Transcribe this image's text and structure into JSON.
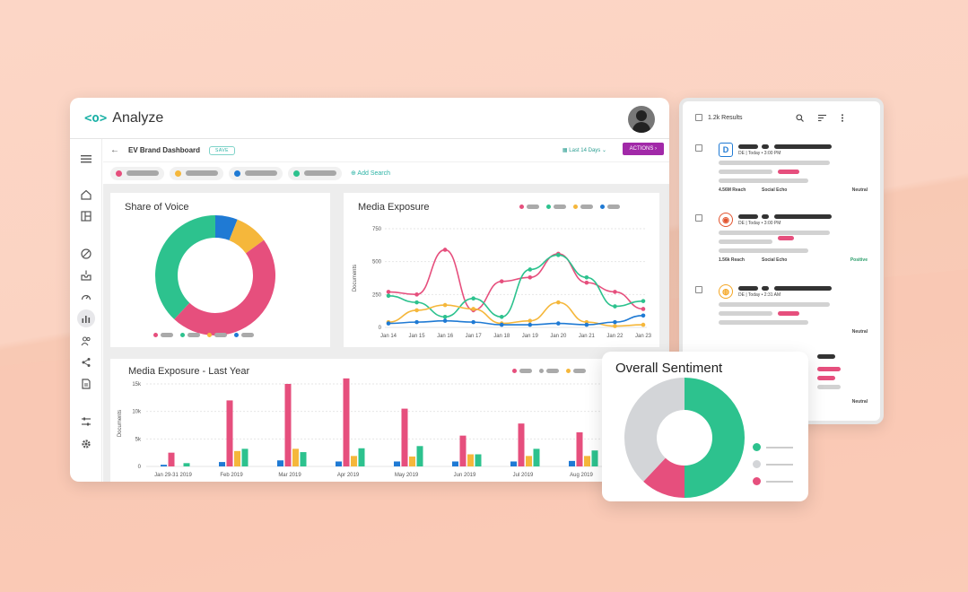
{
  "app": {
    "logo_mark": "<o>",
    "name": "Analyze"
  },
  "toolbar": {
    "back": "←",
    "dashboard_title": "EV Brand Dashboard",
    "save_label": "SAVE",
    "date_range": "Last 14 Days",
    "date_caret": "⌄",
    "actions_label": "ACTIONS ›"
  },
  "filters": {
    "chips": [
      {
        "color": "#e64f7d"
      },
      {
        "color": "#f5b73b"
      },
      {
        "color": "#1f7ad4"
      },
      {
        "color": "#2dc28e"
      }
    ],
    "add_search": "⊕ Add Search"
  },
  "sidebar_icons": [
    "menu-icon",
    "home-icon",
    "layout-icon",
    "compass-icon",
    "inbox-icon",
    "gauge-icon",
    "analytics-icon",
    "users-icon",
    "share-icon",
    "report-icon",
    "sliders-icon",
    "gear-icon"
  ],
  "colors": {
    "pink": "#e64f7d",
    "green": "#2dc28e",
    "yellow": "#f5b73b",
    "blue": "#1f7ad4",
    "grey": "#d3d5d8",
    "accent": "#a129a8",
    "teal": "#1bb1a6"
  },
  "share_of_voice": {
    "title": "Share of Voice"
  },
  "media_exposure": {
    "title": "Media Exposure"
  },
  "media_exposure_year": {
    "title": "Media Exposure - Last Year"
  },
  "overall_sentiment": {
    "title": "Overall Sentiment"
  },
  "results_panel": {
    "count_label": "1.2k Results",
    "icons": [
      "search-icon",
      "sort-icon",
      "more-icon"
    ],
    "items": [
      {
        "meta_line": "DE | Today • 3:00 PM",
        "reach": "4.56M Reach",
        "source": "Social Echo",
        "sentiment": "Neutral",
        "src_glyph": "D",
        "src_color": "#1f7ad4"
      },
      {
        "meta_line": "DE | Today • 3:00 PM",
        "reach": "1.56k Reach",
        "source": "Social Echo",
        "sentiment": "Positive",
        "src_glyph": "◉",
        "src_color": "#e2542f"
      },
      {
        "meta_line": "DE | Today • 2:31 AM",
        "reach": "",
        "source": "",
        "sentiment": "Neutral",
        "src_glyph": "◍",
        "src_color": "#f5a623"
      },
      {
        "meta_line": "",
        "reach": "",
        "source": "",
        "sentiment": "Neutral",
        "src_glyph": "",
        "src_color": ""
      }
    ]
  },
  "chart_data": [
    {
      "type": "pie",
      "title": "Share of Voice",
      "donut": true,
      "slices": [
        {
          "color": "#1f7ad4",
          "value": 6
        },
        {
          "color": "#f5b73b",
          "value": 9
        },
        {
          "color": "#e64f7d",
          "value": 47
        },
        {
          "color": "#2dc28e",
          "value": 38
        }
      ]
    },
    {
      "type": "line",
      "title": "Media Exposure",
      "ylabel": "Documents",
      "ylim": [
        0,
        750
      ],
      "yticks": [
        0,
        250,
        500,
        750
      ],
      "categories": [
        "Jan 14",
        "Jan 15",
        "Jan 16",
        "Jan 17",
        "Jan 18",
        "Jan 19",
        "Jan 20",
        "Jan 21",
        "Jan 22",
        "Jan 23"
      ],
      "series": [
        {
          "color": "#e64f7d",
          "values": [
            270,
            250,
            590,
            130,
            350,
            380,
            560,
            340,
            270,
            140
          ]
        },
        {
          "color": "#2dc28e",
          "values": [
            240,
            190,
            80,
            220,
            80,
            440,
            550,
            380,
            160,
            200
          ]
        },
        {
          "color": "#f5b73b",
          "values": [
            40,
            130,
            170,
            140,
            30,
            50,
            190,
            40,
            10,
            20
          ]
        },
        {
          "color": "#1f7ad4",
          "values": [
            30,
            40,
            50,
            40,
            20,
            20,
            30,
            20,
            40,
            90
          ]
        }
      ]
    },
    {
      "type": "bar",
      "title": "Media Exposure - Last Year",
      "ylabel": "Documents",
      "ylim": [
        0,
        15000
      ],
      "yticks": [
        "0",
        "5k",
        "10k",
        "15k"
      ],
      "ytick_values": [
        0,
        5000,
        10000,
        15000
      ],
      "categories": [
        "Jan 29-31 2019",
        "Feb 2019",
        "Mar 2019",
        "Apr 2019",
        "May 2019",
        "Jun 2019",
        "Jul 2019",
        "Aug 2019"
      ],
      "series": [
        {
          "color": "#1f7ad4",
          "values": [
            300,
            800,
            1100,
            900,
            900,
            900,
            900,
            1000
          ]
        },
        {
          "color": "#e64f7d",
          "values": [
            2500,
            12000,
            15000,
            16000,
            10500,
            5600,
            7800,
            6200
          ]
        },
        {
          "color": "#f5b73b",
          "values": [
            0,
            2800,
            3200,
            1900,
            1800,
            2200,
            1900,
            1900
          ]
        },
        {
          "color": "#2dc28e",
          "values": [
            600,
            3200,
            2600,
            3300,
            3700,
            2200,
            3200,
            2900
          ]
        }
      ]
    },
    {
      "type": "pie",
      "title": "Overall Sentiment",
      "donut": true,
      "slices": [
        {
          "color": "#2dc28e",
          "value": 50
        },
        {
          "color": "#e64f7d",
          "value": 12
        },
        {
          "color": "#d3d5d8",
          "value": 38
        }
      ]
    }
  ]
}
